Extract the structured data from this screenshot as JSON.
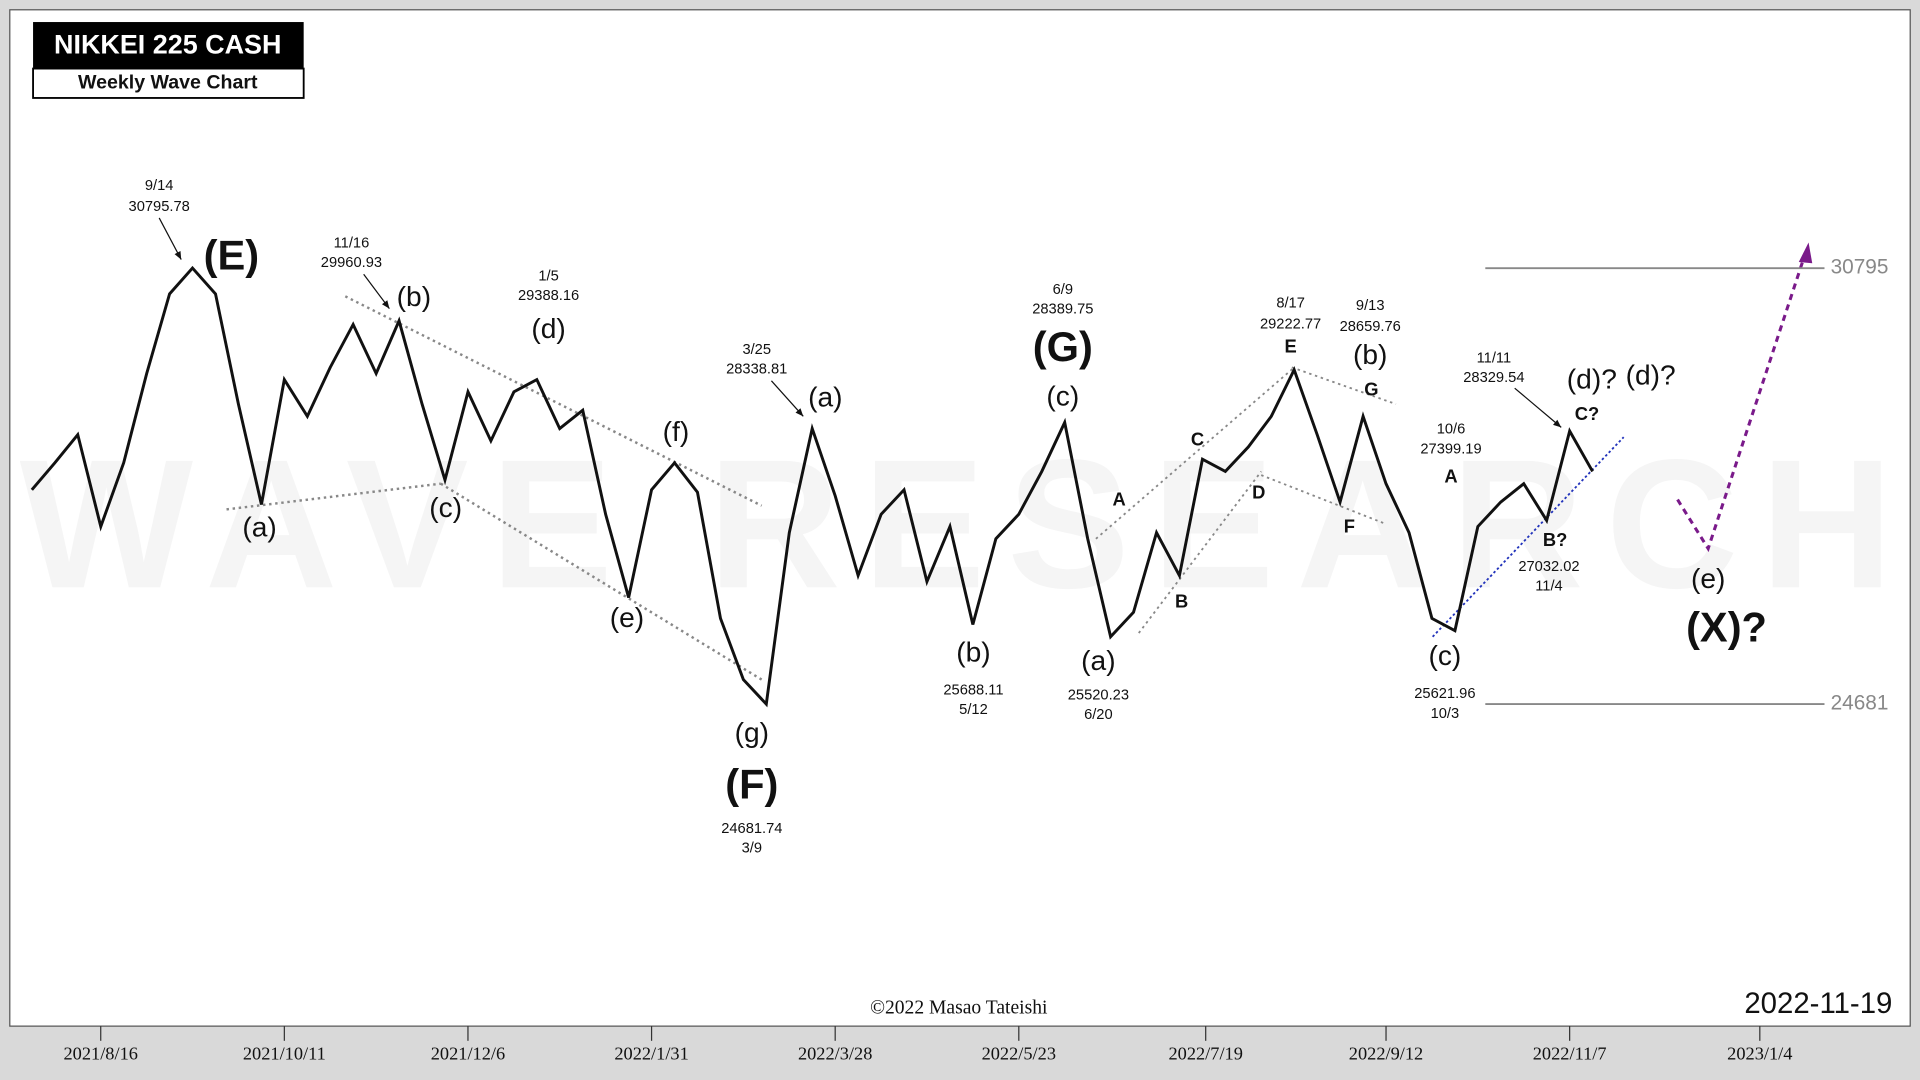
{
  "chart_data": {
    "type": "line",
    "title": "NIKKEI 225 CASH",
    "subtitle": "Weekly Wave Chart",
    "date": "2022-11-19",
    "copyright": "©2022 Masao Tateishi",
    "watermark": "WAVE RESEARCH",
    "color": "#111111",
    "x": [
      "2021/7/26",
      "2021/8/2",
      "2021/8/9",
      "2021/8/16",
      "2021/8/23",
      "2021/8/30",
      "2021/9/6",
      "2021/9/13",
      "2021/9/20",
      "2021/9/27",
      "2021/10/4",
      "2021/10/11",
      "2021/10/18",
      "2021/10/25",
      "2021/11/1",
      "2021/11/8",
      "2021/11/15",
      "2021/11/22",
      "2021/11/29",
      "2021/12/6",
      "2021/12/13",
      "2021/12/20",
      "2021/12/27",
      "2022/1/3",
      "2022/1/10",
      "2022/1/17",
      "2022/1/24",
      "2022/1/31",
      "2022/2/7",
      "2022/2/14",
      "2022/2/21",
      "2022/2/28",
      "2022/3/7",
      "2022/3/14",
      "2022/3/21",
      "2022/3/28",
      "2022/4/4",
      "2022/4/11",
      "2022/4/18",
      "2022/4/25",
      "2022/5/2",
      "2022/5/9",
      "2022/5/16",
      "2022/5/23",
      "2022/5/30",
      "2022/6/6",
      "2022/6/13",
      "2022/6/20",
      "2022/6/27",
      "2022/7/4",
      "2022/7/11",
      "2022/7/18",
      "2022/7/25",
      "2022/8/1",
      "2022/8/8",
      "2022/8/15",
      "2022/8/22",
      "2022/8/29",
      "2022/9/5",
      "2022/9/12",
      "2022/9/19",
      "2022/9/26",
      "2022/10/3",
      "2022/10/10",
      "2022/10/17",
      "2022/10/24",
      "2022/10/31",
      "2022/11/7",
      "2022/11/14"
    ],
    "values": [
      27687,
      28064,
      28459,
      27171,
      28064,
      29318,
      30434,
      30796,
      30434,
      28889,
      27480,
      29232,
      28717,
      29404,
      30005,
      29318,
      30057,
      28889,
      27824,
      29060,
      28373,
      29060,
      29232,
      28545,
      28803,
      27343,
      26175,
      27687,
      28064,
      27652,
      25883,
      25025,
      24681,
      27085,
      28545,
      27601,
      26484,
      27343,
      27687,
      26398,
      27171,
      25797,
      27000,
      27343,
      27944,
      28631,
      27000,
      25626,
      25969,
      27085,
      26484,
      28116,
      27944,
      28288,
      28717,
      29370,
      28459,
      27515,
      28717,
      27772,
      27085,
      25883,
      25711,
      27171,
      27515,
      27772,
      27257,
      28511,
      27944
    ],
    "xlim": [
      "2021/7/23",
      "2023/2/17"
    ],
    "xticks": [
      "2021/8/16",
      "2021/10/11",
      "2021/12/6",
      "2022/1/31",
      "2022/3/28",
      "2022/5/23",
      "2022/7/19",
      "2022/9/12",
      "2022/11/7",
      "2023/1/4"
    ],
    "ylim": [
      20164,
      34419
    ],
    "reference_lines": [
      30795,
      24681
    ],
    "annotations": [
      "9/14",
      "30795.78",
      "(E)",
      "(a)",
      "11/16",
      "29960.93",
      "(b)",
      "(c)",
      "1/5",
      "29388.16",
      "(d)",
      "(f)",
      "(e)",
      "(g)",
      "(F)",
      "24681.74",
      "3/9",
      "3/25",
      "28338.81",
      "(a)",
      "(b)",
      "25688.11",
      "5/12",
      "6/9",
      "28389.75",
      "(G)",
      "(c)",
      "(a)",
      "25520.23",
      "6/20",
      "A",
      "B",
      "C",
      "D",
      "E",
      "8/17",
      "29222.77",
      "9/13",
      "28659.76",
      "(b)",
      "G",
      "F",
      "10/6",
      "27399.19",
      "A",
      "(c)",
      "25621.96",
      "10/3",
      "11/11",
      "28329.54",
      "(d)?",
      "(d)?",
      "C?",
      "B?",
      "27032.02",
      "11/4",
      "(e)",
      "(X)?"
    ]
  }
}
